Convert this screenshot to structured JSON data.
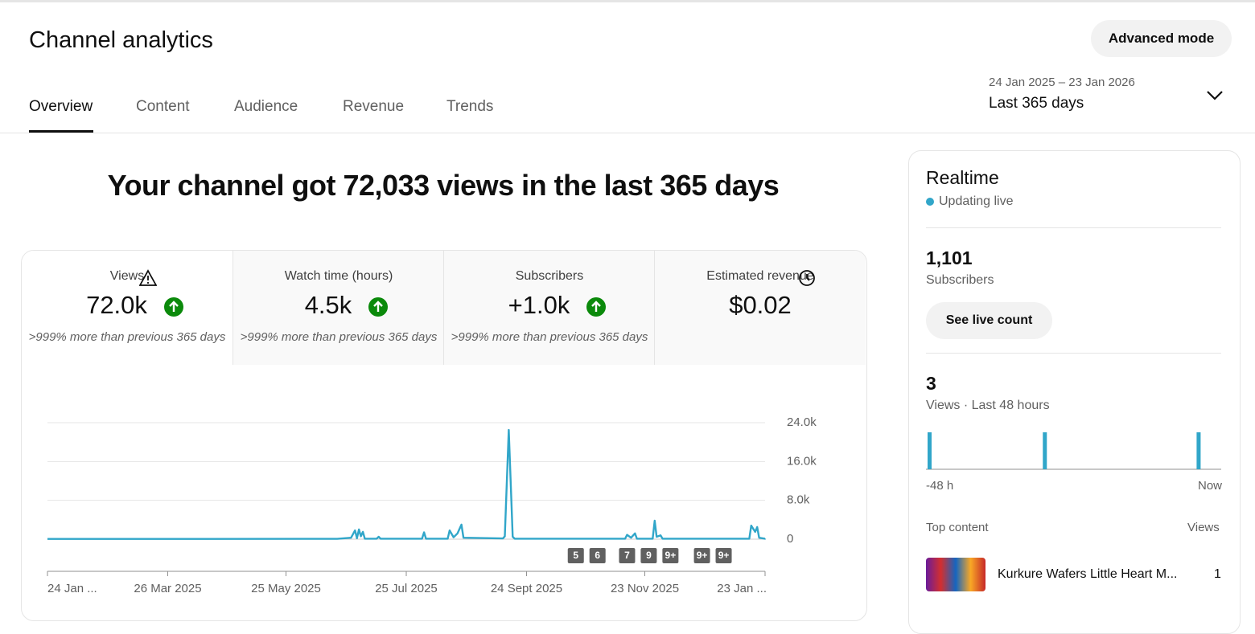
{
  "header": {
    "title": "Channel analytics",
    "button": "Advanced mode",
    "date_range": "24 Jan 2025 – 23 Jan 2026",
    "period": "Last 365 days"
  },
  "tabs": [
    "Overview",
    "Content",
    "Audience",
    "Revenue",
    "Trends"
  ],
  "headline": "Your channel got 72,033 views in the last 365 days",
  "metrics": [
    {
      "label": "Views",
      "value": "72.0k",
      "note": ">999% more than previous 365 days"
    },
    {
      "label": "Watch time (hours)",
      "value": "4.5k",
      "note": ">999% more than previous 365 days"
    },
    {
      "label": "Subscribers",
      "value": "+1.0k",
      "note": ">999% more than previous 365 days"
    },
    {
      "label": "Estimated revenue",
      "value": "$0.02"
    }
  ],
  "chart_data": {
    "type": "line",
    "color": "#31a6c9",
    "xlim": [
      "2025-01-24",
      "2026-01-23"
    ],
    "xticks": [
      {
        "value": "2025-01-24",
        "label": "24 Jan ..."
      },
      {
        "value": "2025-03-26",
        "label": "26 Mar 2025"
      },
      {
        "value": "2025-05-25",
        "label": "25 May 2025"
      },
      {
        "value": "2025-07-25",
        "label": "25 Jul 2025"
      },
      {
        "value": "2025-09-24",
        "label": "24 Sept 2025"
      },
      {
        "value": "2025-11-23",
        "label": "23 Nov 2025"
      },
      {
        "value": "2026-01-23",
        "label": "23 Jan ..."
      }
    ],
    "ylim": [
      0,
      24000
    ],
    "yticks": [
      0,
      {
        "value": 8000,
        "label": "8.0k"
      },
      {
        "value": 16000,
        "label": "16.0k"
      },
      {
        "value": 24000,
        "label": "24.0k"
      }
    ],
    "grid": true,
    "x": [
      "2025-01-24",
      "2025-06-20",
      "2025-06-27",
      "2025-06-29",
      "2025-06-30",
      "2025-07-01",
      "2025-07-02",
      "2025-07-03",
      "2025-07-04",
      "2025-07-10",
      "2025-07-11",
      "2025-07-12",
      "2025-08-02",
      "2025-08-03",
      "2025-08-04",
      "2025-08-15",
      "2025-08-16",
      "2025-08-18",
      "2025-08-20",
      "2025-08-22",
      "2025-08-23",
      "2025-09-12",
      "2025-09-13",
      "2025-09-15",
      "2025-09-17",
      "2025-09-18",
      "2025-11-13",
      "2025-11-14",
      "2025-11-16",
      "2025-11-18",
      "2025-11-19",
      "2025-11-27",
      "2025-11-28",
      "2025-11-29",
      "2025-12-01",
      "2025-12-02",
      "2026-01-15",
      "2026-01-16",
      "2026-01-18",
      "2026-01-19",
      "2026-01-20",
      "2026-01-23"
    ],
    "values": [
      50,
      60,
      300,
      1800,
      200,
      2000,
      600,
      1500,
      100,
      100,
      500,
      100,
      100,
      1400,
      100,
      100,
      1800,
      400,
      1200,
      3000,
      300,
      150,
      600,
      22500,
      500,
      100,
      100,
      900,
      300,
      1200,
      100,
      100,
      3800,
      500,
      800,
      100,
      100,
      2800,
      1500,
      2500,
      300,
      100
    ],
    "annotations": [
      {
        "x": "2025-10-19",
        "label": "5"
      },
      {
        "x": "2025-10-30",
        "label": "6"
      },
      {
        "x": "2025-11-14",
        "label": "7"
      },
      {
        "x": "2025-11-25",
        "label": "9"
      },
      {
        "x": "2025-12-06",
        "label": "9+"
      },
      {
        "x": "2025-12-22",
        "label": "9+"
      },
      {
        "x": "2026-01-02",
        "label": "9+"
      }
    ]
  },
  "realtime": {
    "title": "Realtime",
    "status": "Updating live",
    "subscribers": "1,101",
    "subscribers_label": "Subscribers",
    "button": "See live count",
    "views": "3",
    "views_label": "Views · Last 48 hours",
    "chart": {
      "type": "bar",
      "xlim": [
        -48,
        0
      ],
      "x": [
        -48,
        -29,
        -4
      ],
      "values": [
        1,
        1,
        1
      ],
      "ylim": [
        0,
        1
      ],
      "start_label": "-48 h",
      "end_label": "Now"
    },
    "top_content": "Top content",
    "top_views": "Views",
    "item": {
      "title": "Kurkure Wafers Little Heart M...",
      "views": "1"
    }
  }
}
